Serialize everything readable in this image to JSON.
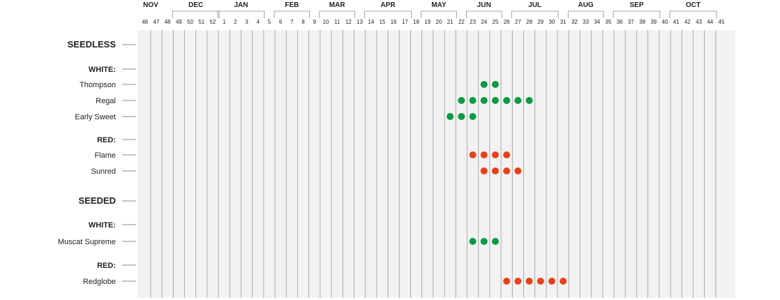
{
  "chart_data": {
    "type": "scatter",
    "title": "",
    "xlabel": "",
    "ylabel": "",
    "months": [
      "NOV",
      "DEC",
      "JAN",
      "FEB",
      "MAR",
      "APR",
      "MAY",
      "JUN",
      "JUL",
      "AUG",
      "SEP",
      "OCT"
    ],
    "weeks": [
      46,
      47,
      48,
      49,
      50,
      51,
      52,
      1,
      2,
      3,
      4,
      5,
      6,
      7,
      8,
      9,
      10,
      11,
      12,
      13,
      14,
      15,
      16,
      17,
      18,
      19,
      20,
      21,
      22,
      23,
      24,
      25,
      26,
      27,
      28,
      29,
      30,
      31,
      32,
      33,
      34,
      35,
      36,
      37,
      38,
      39,
      40,
      41,
      42,
      43,
      44,
      45
    ],
    "rows": [
      {
        "label": "SEEDLESS",
        "kind": "section",
        "weeks": []
      },
      {
        "label": "WHITE:",
        "kind": "group",
        "weeks": []
      },
      {
        "label": "Thompson",
        "kind": "item",
        "color": "white",
        "weeks": [
          24,
          25
        ]
      },
      {
        "label": "Regal",
        "kind": "item",
        "color": "white",
        "weeks": [
          22,
          23,
          24,
          25,
          26,
          27,
          28
        ]
      },
      {
        "label": "Early Sweet",
        "kind": "item",
        "color": "white",
        "weeks": [
          21,
          22,
          23
        ]
      },
      {
        "label": "RED:",
        "kind": "group",
        "weeks": []
      },
      {
        "label": "Flame",
        "kind": "item",
        "color": "red",
        "weeks": [
          23,
          24,
          25,
          26
        ]
      },
      {
        "label": "Sunred",
        "kind": "item",
        "color": "red",
        "weeks": [
          24,
          25,
          26,
          27
        ]
      },
      {
        "label": "SEEDED",
        "kind": "section",
        "weeks": []
      },
      {
        "label": "WHITE:",
        "kind": "group",
        "weeks": []
      },
      {
        "label": "Muscat Supreme",
        "kind": "item",
        "color": "white",
        "weeks": [
          23,
          24,
          25
        ]
      },
      {
        "label": "RED:",
        "kind": "group",
        "weeks": []
      },
      {
        "label": "Redglobe",
        "kind": "item",
        "color": "red",
        "weeks": [
          26,
          27,
          28,
          29,
          30,
          31
        ]
      }
    ],
    "colors": {
      "white": "#0a9a45",
      "red": "#e8411a",
      "grid_bg": "#f2f2f2",
      "grid_line": "#9a9a9a"
    }
  }
}
